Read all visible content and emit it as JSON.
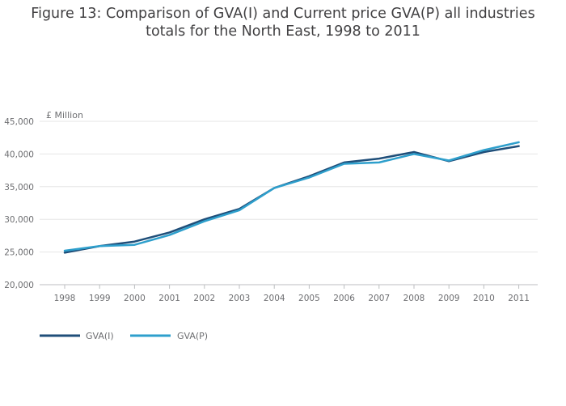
{
  "title": {
    "line1": "Figure 13: Comparison of GVA(I) and Current price GVA(P) all industries",
    "line2": "totals for the North East, 1998 to 2011"
  },
  "colors": {
    "gva_i": "#1f4e79",
    "gva_p": "#2e9fcc",
    "grid": "#e6e6e6",
    "axis": "#bcbec0"
  },
  "chart_data": {
    "type": "line",
    "title": "Figure 13: Comparison of GVA(I) and Current price GVA(P) all industries totals for the North East, 1998 to 2011",
    "xlabel": "",
    "ylabel": "£ Million",
    "categories": [
      "1998",
      "1999",
      "2000",
      "2001",
      "2002",
      "2003",
      "2004",
      "2005",
      "2006",
      "2007",
      "2008",
      "2009",
      "2010",
      "2011"
    ],
    "ylim": [
      20000,
      45000
    ],
    "yticks": [
      20000,
      25000,
      30000,
      35000,
      40000,
      45000
    ],
    "ytick_labels": [
      "20,000",
      "25,000",
      "30,000",
      "35,000",
      "40,000",
      "45,000"
    ],
    "grid": true,
    "legend_position": "bottom-left",
    "series": [
      {
        "name": "GVA(I)",
        "values": [
          24900,
          25900,
          26600,
          28000,
          30000,
          31600,
          34800,
          36600,
          38700,
          39300,
          40300,
          38900,
          40300,
          41200
        ]
      },
      {
        "name": "GVA(P)",
        "values": [
          25200,
          25900,
          26100,
          27600,
          29700,
          31400,
          34800,
          36400,
          38500,
          38700,
          40000,
          39000,
          40600,
          41800
        ]
      }
    ]
  }
}
